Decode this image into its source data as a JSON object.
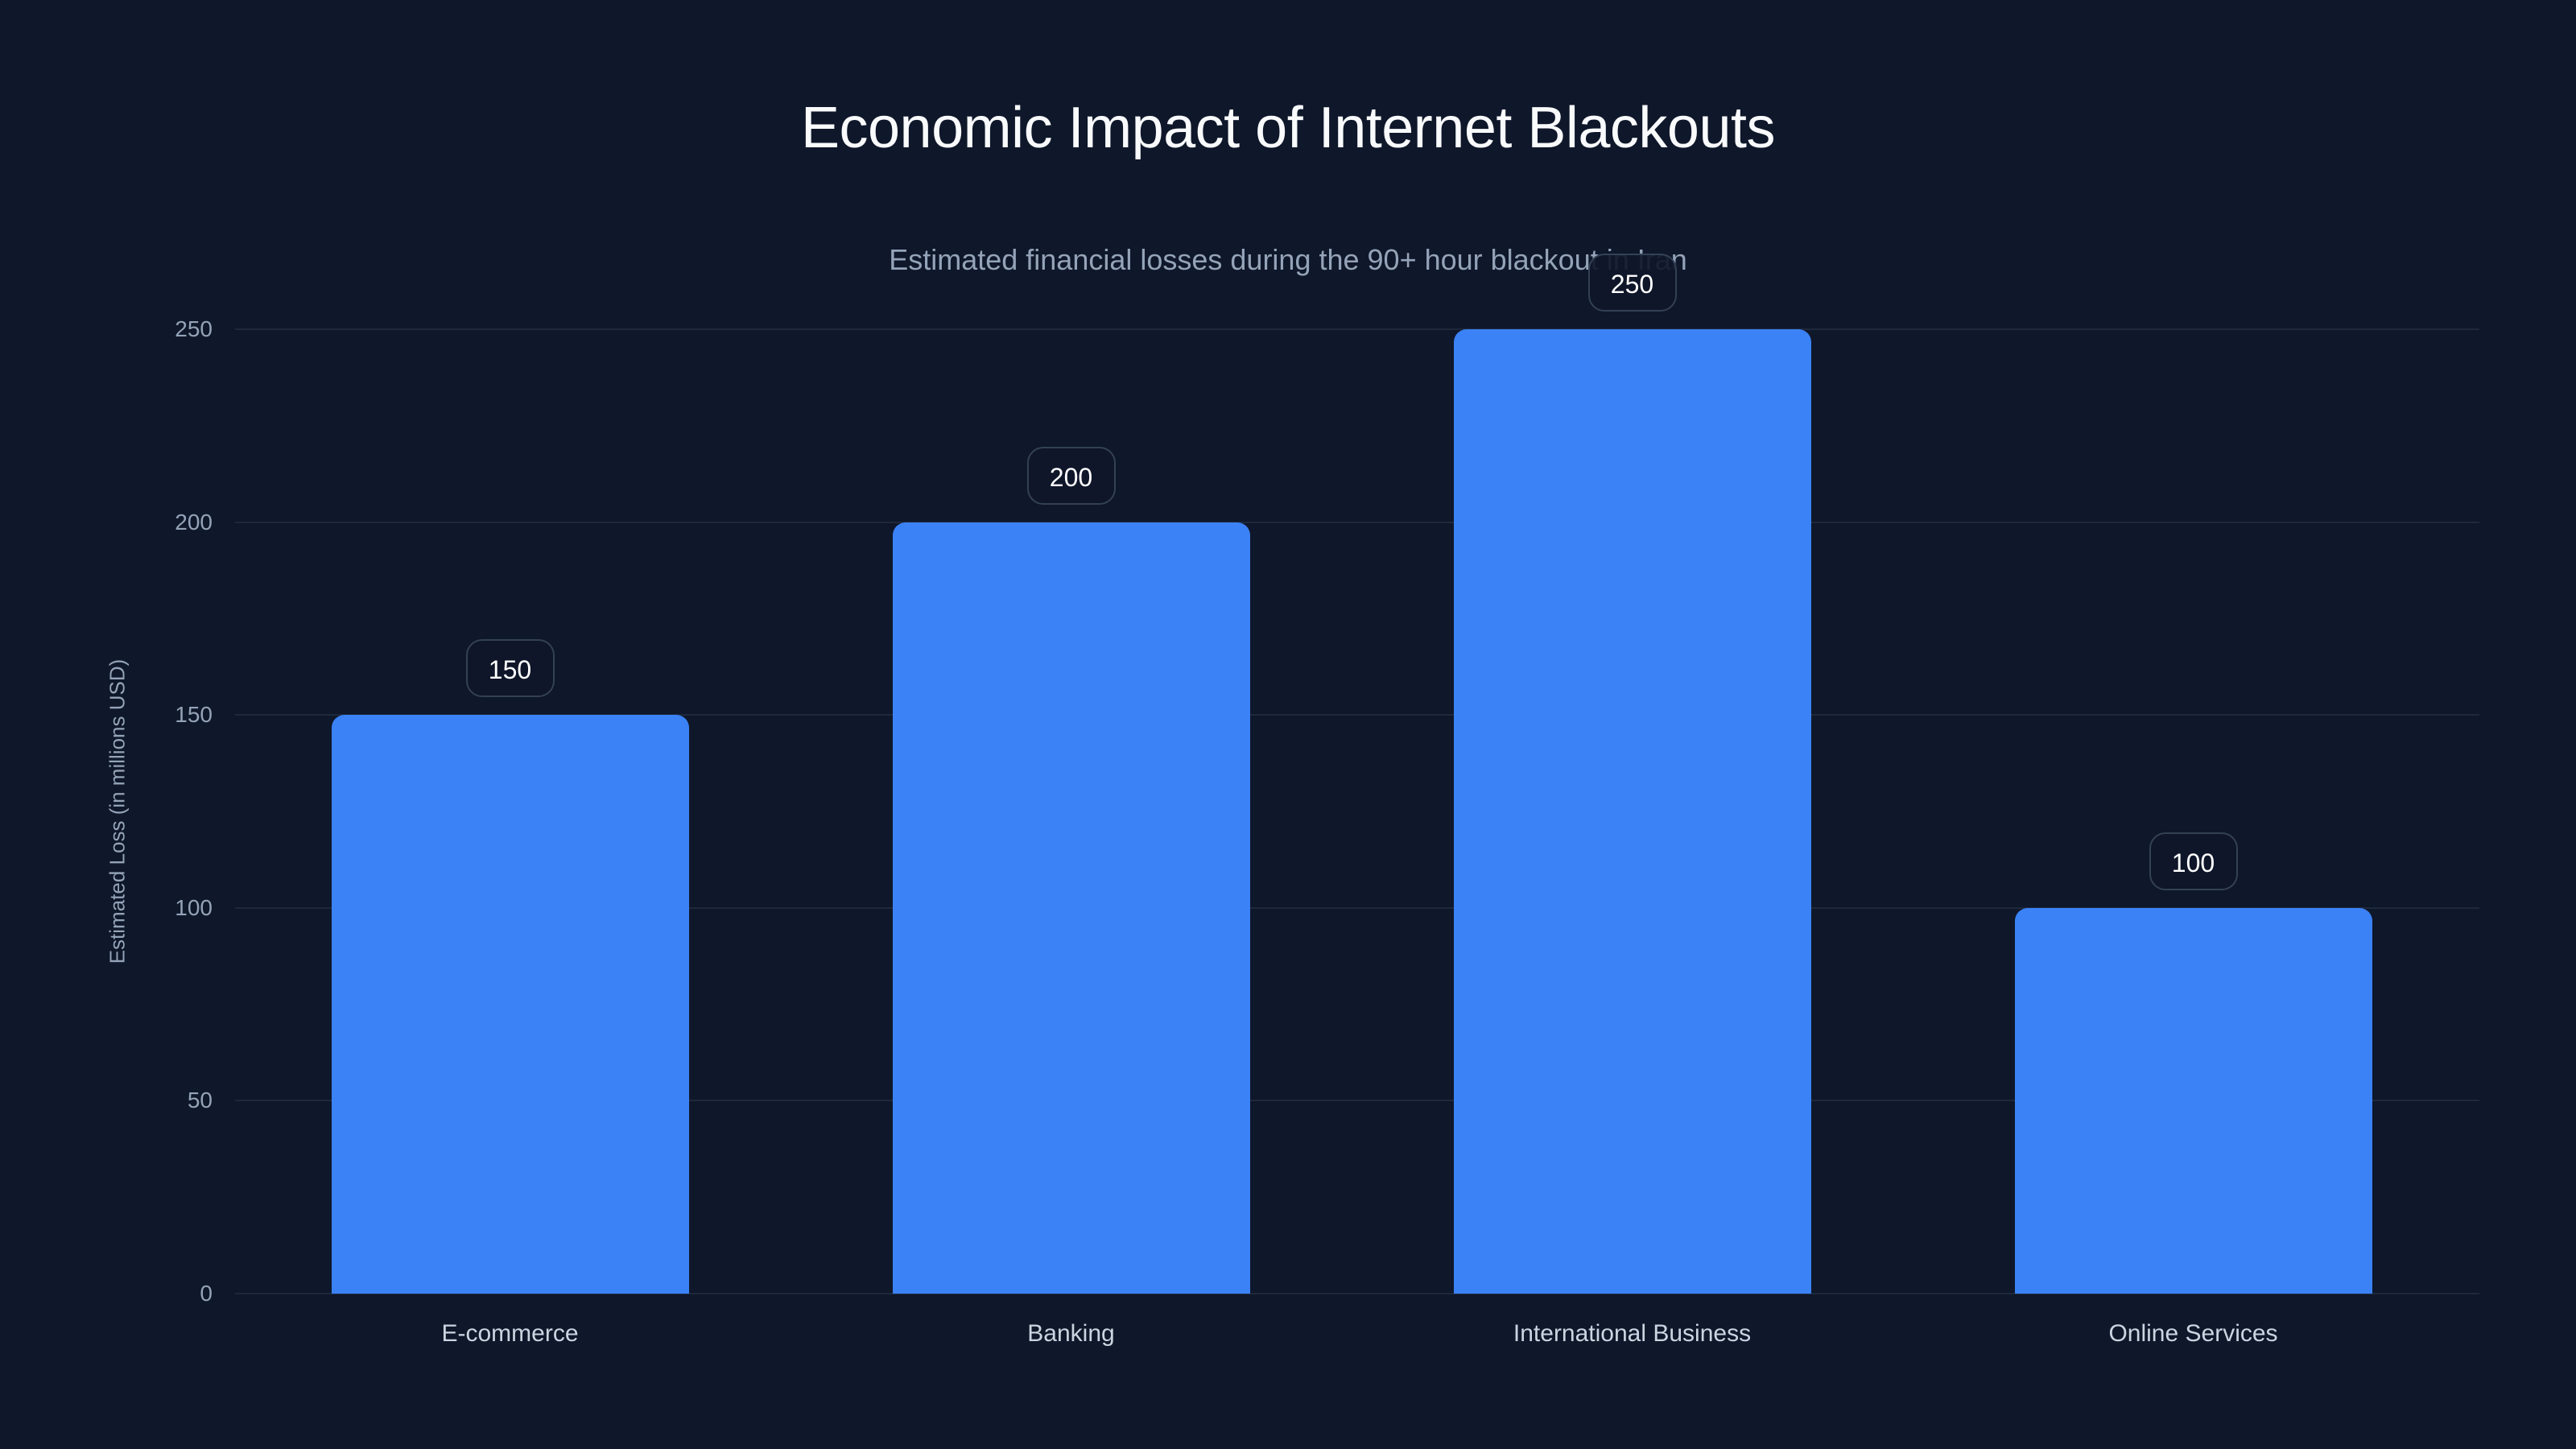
{
  "header": {
    "title": "Economic Impact of Internet Blackouts",
    "subtitle": "Estimated financial losses during the 90+ hour blackout in Iran"
  },
  "colors": {
    "background": "#0f172a",
    "bar": "#3b82f6",
    "grid": "#1e293b",
    "label_border": "#334155"
  },
  "chart_data": {
    "type": "bar",
    "title": "Economic Impact of Internet Blackouts",
    "subtitle": "Estimated financial losses during the 90+ hour blackout in Iran",
    "categories": [
      "E-commerce",
      "Banking",
      "International Business",
      "Online Services"
    ],
    "values": [
      150,
      200,
      250,
      100
    ],
    "value_labels": [
      "150",
      "200",
      "250",
      "100"
    ],
    "xlabel": "",
    "ylabel": "Estimated Loss (in millions USD)",
    "ylim": [
      0,
      250
    ],
    "yticks": [
      "0",
      "50",
      "100",
      "150",
      "200",
      "250"
    ],
    "grid": true,
    "legend": null
  }
}
